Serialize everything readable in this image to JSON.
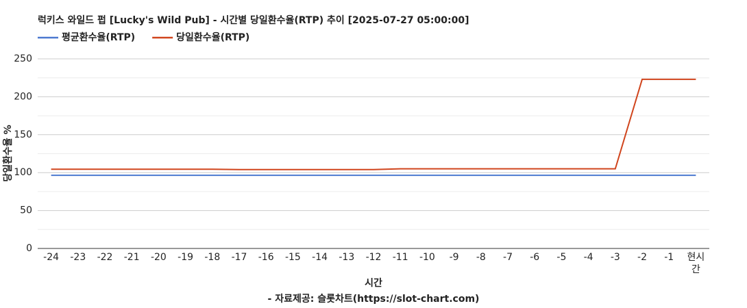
{
  "chart_data": {
    "type": "line",
    "title": "럭키스 와일드 펍 [Lucky's Wild Pub] - 시간별 당일환수율(RTP) 추이 [2025-07-27 05:00:00]",
    "x_label": "시간",
    "y_label": "당일환수율 %",
    "source": "- 자료제공: 슬롯차트(https://slot-chart.com)",
    "categories": [
      "-24",
      "-23",
      "-22",
      "-21",
      "-20",
      "-19",
      "-18",
      "-17",
      "-16",
      "-15",
      "-14",
      "-13",
      "-12",
      "-11",
      "-10",
      "-9",
      "-8",
      "-7",
      "-6",
      "-5",
      "-4",
      "-3",
      "-2",
      "-1",
      "현시간"
    ],
    "series": [
      {
        "name": "평균환수율(RTP)",
        "color": "#4a78cf",
        "values": [
          96.5,
          96.5,
          96.5,
          96.5,
          96.5,
          96.5,
          96.5,
          96.5,
          96.5,
          96.5,
          96.5,
          96.5,
          96.5,
          96.5,
          96.5,
          96.5,
          96.5,
          96.5,
          96.5,
          96.5,
          96.5,
          96.5,
          96.5,
          96.5,
          96.5
        ]
      },
      {
        "name": "당일환수율(RTP)",
        "color": "#d0441c",
        "values": [
          104.5,
          104.5,
          104.5,
          104.5,
          104.5,
          104.5,
          104.5,
          104,
          104,
          104,
          104,
          104,
          104,
          105,
          105,
          105,
          105,
          105,
          105,
          105,
          105,
          105,
          223,
          223,
          223
        ]
      }
    ],
    "ylim": [
      0,
      250
    ],
    "yticks": [
      0,
      50,
      100,
      150,
      200,
      250
    ],
    "yminorticks": [
      25,
      75,
      125,
      175,
      225
    ],
    "grid": true,
    "legend": "top-left"
  }
}
